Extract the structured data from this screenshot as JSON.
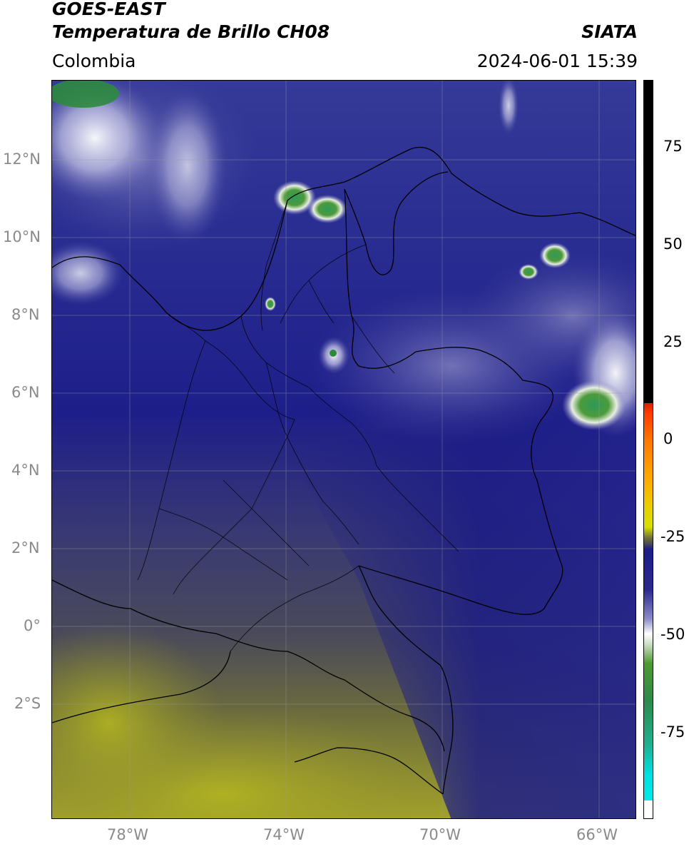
{
  "header": {
    "title_line1": "GOES-EAST",
    "title_line2": "Temperatura de Brillo CH08",
    "agency": "SIATA",
    "region": "Colombia",
    "datetime": "2024-06-01 15:39"
  },
  "map": {
    "lon_range": [
      -80,
      -65
    ],
    "lat_range": [
      -5,
      14
    ],
    "lon_ticks": [
      {
        "value": -78,
        "label": "78°W"
      },
      {
        "value": -74,
        "label": "74°W"
      },
      {
        "value": -70,
        "label": "70°W"
      },
      {
        "value": -66,
        "label": "66°W"
      }
    ],
    "lat_ticks": [
      {
        "value": 12,
        "label": "12°N"
      },
      {
        "value": 10,
        "label": "10°N"
      },
      {
        "value": 8,
        "label": "8°N"
      },
      {
        "value": 6,
        "label": "6°N"
      },
      {
        "value": 4,
        "label": "4°N"
      },
      {
        "value": 2,
        "label": "2°N"
      },
      {
        "value": 0,
        "label": "0°"
      },
      {
        "value": -2,
        "label": "2°S"
      }
    ],
    "gridlines": true
  },
  "colorbar": {
    "range": [
      -100,
      90
    ],
    "ticks": [
      {
        "value": 75,
        "label": "75"
      },
      {
        "value": 50,
        "label": "50"
      },
      {
        "value": 25,
        "label": "25"
      },
      {
        "value": 0,
        "label": "0"
      },
      {
        "value": -25,
        "label": "-25"
      },
      {
        "value": -50,
        "label": "-50"
      },
      {
        "value": -75,
        "label": "-75"
      }
    ]
  }
}
